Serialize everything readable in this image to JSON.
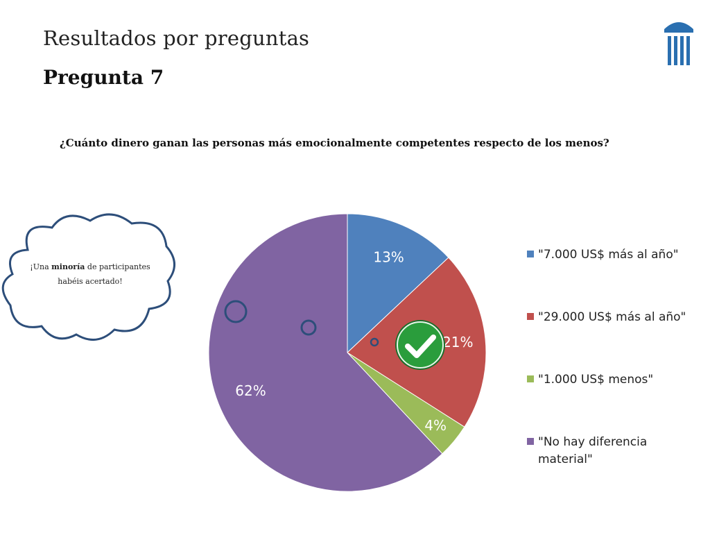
{
  "slide": {
    "title": "Resultados por preguntas",
    "subtitle": "Pregunta 7"
  },
  "question": "¿Cuánto dinero ganan las personas más emocionalmente competentes respecto de los menos?",
  "callout": {
    "prefix": "¡Una ",
    "emphasis": "minoría",
    "suffix": " de participantes habéis acertado!"
  },
  "icons": {
    "correct_answer": "checkmark-badge-icon",
    "logo": "columns-building-logo"
  },
  "colors": {
    "blue": "#4f81bd",
    "red": "#c0504d",
    "green": "#9bbb59",
    "purple": "#8064a2",
    "check_green": "#2a9d3c"
  },
  "chart_data": {
    "type": "pie",
    "title": "",
    "categories": [
      "\"7.000 US$ más al año\"",
      "\"29.000 US$ más al año\"",
      "\"1.000 US$ menos\"",
      "\"No hay diferencia material\""
    ],
    "values": [
      13,
      21,
      4,
      62
    ],
    "value_labels": [
      "13%",
      "21%",
      "4%",
      "62%"
    ],
    "colors": [
      "#4f81bd",
      "#c0504d",
      "#9bbb59",
      "#8064a2"
    ],
    "correct_index": 1,
    "start_angle_deg": 0,
    "direction": "clockwise",
    "legend_position": "right"
  }
}
